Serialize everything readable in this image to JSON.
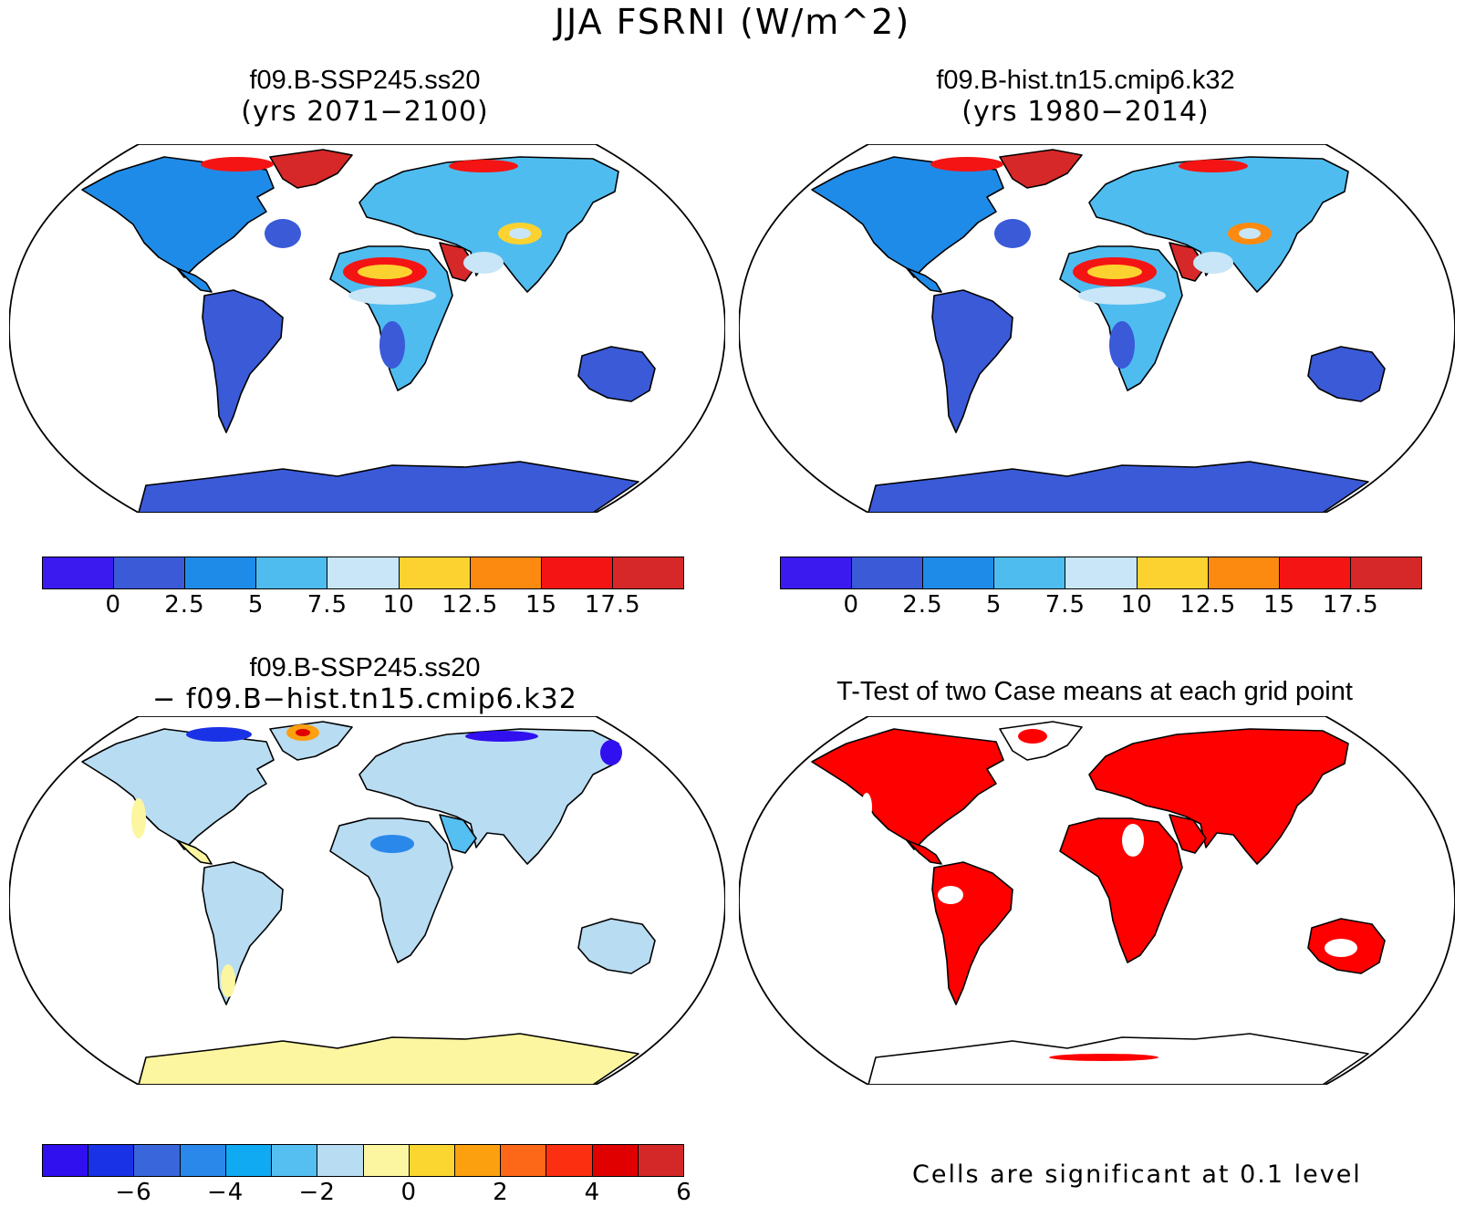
{
  "main_title": "JJA FSRNI (W/m^2)",
  "panels": {
    "top_left": {
      "title": "f09.B-SSP245.ss20",
      "subtitle": "(yrs 2071−2100)"
    },
    "top_right": {
      "title": "f09.B-hist.tn15.cmip6.k32",
      "subtitle": "(yrs 1980−2014)"
    },
    "bottom_left": {
      "title": "f09.B-SSP245.ss20",
      "subtitle": "− f09.B−hist.tn15.cmip6.k32"
    },
    "bottom_right": {
      "title": "T-Test of two Case means at each grid point"
    }
  },
  "colorbar_abs": {
    "colors": [
      "#3a1aef",
      "#3a5ad8",
      "#1f8be8",
      "#4fbcf0",
      "#c8e6f7",
      "#fcd230",
      "#fc8a10",
      "#f41414",
      "#d62828"
    ],
    "tick_labels": [
      "0",
      "2.5",
      "5",
      "7.5",
      "10",
      "12.5",
      "15",
      "17.5"
    ]
  },
  "colorbar_diff": {
    "colors": [
      "#3010ee",
      "#1a32e6",
      "#3a66dc",
      "#2a88ea",
      "#10aaf2",
      "#55bff2",
      "#b8dcf2",
      "#fdf6a0",
      "#fcd630",
      "#fca010",
      "#fc6818",
      "#fc3010",
      "#e00000",
      "#d42828"
    ],
    "tick_labels": [
      "−6",
      "−4",
      "−2",
      "0",
      "2",
      "4",
      "6"
    ]
  },
  "significance_note": "Cells are significant at 0.1 level",
  "significance_color": "#ff0000"
}
